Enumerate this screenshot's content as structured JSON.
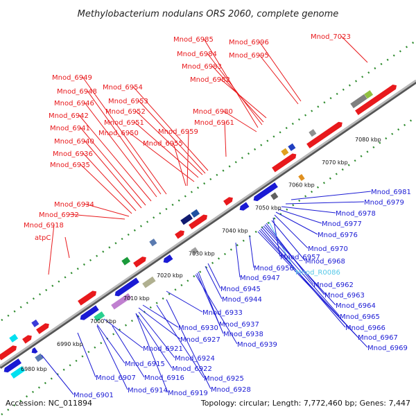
{
  "title": "Methylobacterium nodulans ORS 2060, complete genome",
  "footer": {
    "accession": "Accession: NC_011894",
    "summary": "Topology: circular; Length: 7,772,460 bp; Genes: 7,447"
  },
  "colors": {
    "forward": "#e8191c",
    "reverse": "#1a1ad4",
    "rna": "#55c8e8",
    "backbone": "#8a8a8a",
    "dots": "#2e8b2e"
  },
  "kbp_ticks": [
    "6980 kbp",
    "6990 kbp",
    "7000 kbp",
    "7010 kbp",
    "7020 kbp",
    "7030 kbp",
    "7040 kbp",
    "7050 kbp",
    "7060 kbp",
    "7070 kbp",
    "7080 kbp"
  ],
  "top_labels": [
    "Mnod_6985",
    "Mnod_6996",
    "Mnod_7023",
    "Mnod_6984",
    "Mnod_6995",
    "Mnod_6983",
    "Mnod_6982",
    "Mnod_6949",
    "Mnod_6954",
    "Mnod_6948",
    "Mnod_6953",
    "Mnod_6946",
    "Mnod_6952",
    "Mnod_6980",
    "Mnod_6942",
    "Mnod_6951",
    "Mnod_6961",
    "Mnod_6941",
    "Mnod_6950",
    "Mnod_6959",
    "Mnod_6940",
    "Mnod_6955",
    "Mnod_6936",
    "Mnod_6935",
    "Mnod_6934",
    "Mnod_6932",
    "Mnod_6918",
    "atpC"
  ],
  "bottom_labels": [
    "Mnod_6981",
    "Mnod_6979",
    "Mnod_6978",
    "Mnod_6977",
    "Mnod_6976",
    "Mnod_6970",
    "Mnod_6957",
    "Mnod_6968",
    "Mnod_6956",
    "Mnod_R0086",
    "Mnod_6947",
    "Mnod_6962",
    "Mnod_6945",
    "Mnod_6963",
    "Mnod_6944",
    "Mnod_6964",
    "Mnod_6933",
    "Mnod_6965",
    "Mnod_6937",
    "Mnod_6966",
    "Mnod_6930",
    "Mnod_6938",
    "Mnod_6967",
    "Mnod_6927",
    "Mnod_6939",
    "Mnod_6969",
    "Mnod_6921",
    "Mnod_6924",
    "Mnod_6915",
    "Mnod_6922",
    "Mnod_6907",
    "Mnod_6916",
    "Mnod_6925",
    "Mnod_6914",
    "Mnod_6919",
    "Mnod_6928",
    "Mnod_6901"
  ]
}
